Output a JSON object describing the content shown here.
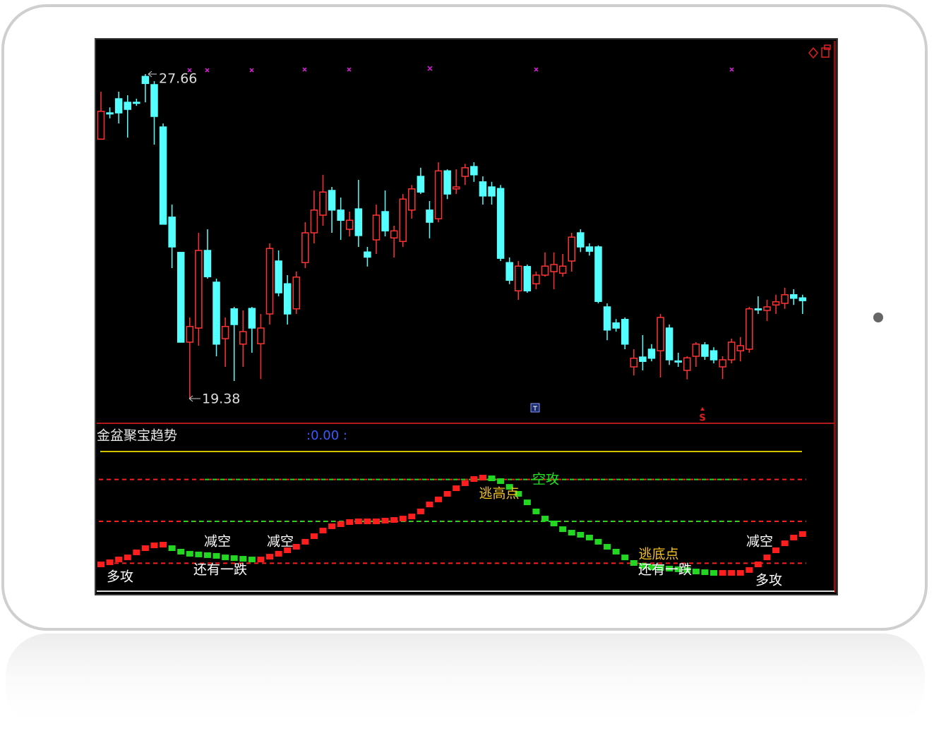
{
  "chart_data": [
    {
      "type": "candlestick",
      "up_color": "#ff3232",
      "down_color": "#54ffff",
      "ylim": [
        18.75,
        28.47
      ],
      "high_mark": 27.66,
      "low_mark": 19.38,
      "signal": "S",
      "open": [
        26.0,
        26.67,
        27.03,
        26.94,
        26.94,
        27.6,
        27.39,
        26.31,
        24.01,
        23.11,
        20.82,
        21.18,
        23.16,
        22.35,
        20.91,
        21.67,
        20.77,
        21.68,
        20.78,
        21.54,
        22.89,
        22.31,
        21.67,
        22.85,
        23.61,
        24.06,
        24.69,
        24.19,
        23.7,
        24.22,
        23.12,
        23.43,
        24.15,
        23.48,
        23.39,
        24.19,
        25.05,
        24.19,
        23.97,
        25.19,
        24.73,
        25.05,
        25.3,
        24.91,
        24.78,
        24.74,
        22.85,
        22.13,
        22.75,
        22.31,
        22.53,
        22.62,
        22.58,
        22.89,
        23.61,
        23.25,
        23.25,
        21.72,
        21.31,
        21.4,
        20.19,
        20.44,
        20.64,
        20.6,
        21.18,
        20.34,
        20.1,
        20.46,
        20.75,
        20.6,
        20.19,
        20.37,
        20.6,
        20.64,
        21.67,
        21.63,
        21.77,
        21.81,
        22.03,
        21.95
      ],
      "high": [
        27.21,
        26.81,
        27.21,
        27.12,
        27.03,
        27.66,
        27.48,
        26.4,
        24.33,
        23.11,
        21.45,
        23.61,
        23.7,
        22.44,
        21.45,
        21.72,
        21.63,
        21.72,
        21.54,
        23.34,
        23.16,
        22.53,
        22.62,
        23.88,
        24.69,
        25.09,
        24.78,
        24.51,
        24.15,
        24.96,
        23.25,
        24.33,
        24.69,
        23.79,
        24.6,
        24.83,
        25.27,
        24.42,
        25.41,
        25.23,
        25.23,
        25.37,
        25.41,
        25.05,
        24.91,
        24.83,
        22.98,
        22.89,
        22.8,
        22.62,
        23.11,
        23.11,
        23.07,
        23.61,
        23.7,
        23.34,
        23.29,
        21.81,
        21.41,
        21.45,
        20.64,
        21.0,
        20.77,
        21.54,
        21.27,
        20.55,
        20.46,
        20.82,
        20.82,
        20.69,
        20.46,
        20.91,
        20.95,
        21.72,
        21.99,
        21.9,
        22.03,
        22.21,
        22.17,
        22.03
      ],
      "low": [
        26.0,
        26.53,
        26.4,
        26.04,
        26.85,
        26.94,
        25.86,
        23.83,
        22.71,
        20.82,
        19.38,
        20.73,
        22.44,
        20.46,
        20.19,
        19.83,
        20.19,
        20.55,
        19.88,
        21.27,
        21.99,
        21.27,
        21.54,
        22.71,
        23.34,
        23.79,
        23.61,
        23.43,
        23.52,
        23.25,
        22.75,
        23.07,
        23.52,
        22.98,
        23.25,
        23.97,
        24.6,
        23.47,
        23.88,
        24.47,
        24.6,
        24.83,
        24.91,
        24.33,
        24.33,
        22.89,
        22.3,
        21.9,
        22.08,
        22.17,
        22.49,
        22.17,
        22.49,
        22.62,
        23.12,
        23.03,
        21.81,
        20.87,
        21.09,
        20.64,
        19.97,
        20.1,
        20.33,
        19.92,
        20.24,
        20.19,
        19.87,
        20.19,
        20.37,
        20.28,
        19.88,
        20.28,
        20.33,
        20.55,
        21.54,
        21.36,
        21.54,
        21.67,
        21.77,
        21.54
      ],
      "close": [
        26.71,
        26.65,
        26.67,
        26.76,
        26.92,
        27.42,
        26.58,
        23.83,
        23.25,
        20.82,
        21.22,
        23.16,
        22.49,
        20.77,
        21.22,
        21.27,
        21.09,
        21.18,
        21.18,
        23.21,
        22.08,
        21.54,
        22.48,
        23.61,
        24.19,
        24.65,
        24.19,
        23.93,
        23.93,
        23.54,
        22.99,
        24.06,
        23.66,
        23.66,
        24.47,
        24.73,
        24.65,
        23.88,
        25.19,
        24.6,
        24.78,
        25.27,
        25.09,
        24.55,
        24.55,
        22.96,
        22.4,
        22.76,
        22.13,
        22.53,
        22.76,
        22.8,
        22.76,
        23.5,
        23.25,
        23.14,
        21.86,
        21.13,
        21.18,
        20.77,
        20.41,
        20.33,
        20.41,
        21.45,
        20.37,
        20.33,
        20.42,
        20.77,
        20.46,
        20.37,
        20.37,
        20.82,
        20.73,
        21.67,
        21.66,
        21.72,
        21.85,
        22.03,
        21.94,
        21.88
      ]
    },
    {
      "type": "step",
      "title": "金盆聚宝趋势",
      "readout": ":0.00 :",
      "up_color": "#ff1e1e",
      "down_color": "#22d622",
      "ylim": [
        0,
        100
      ],
      "levels": [
        20,
        50,
        80
      ],
      "ceiling": 100,
      "ceiling_color": "#d4c400",
      "values": [
        19.2,
        20.7,
        22.7,
        24.2,
        27.8,
        30.8,
        32.8,
        33.3,
        30.8,
        28.3,
        26.8,
        26.3,
        25.8,
        25.3,
        24.2,
        23.7,
        23.2,
        22.7,
        22.7,
        24.7,
        26.8,
        29.3,
        31.8,
        35.4,
        39.4,
        43.4,
        46.5,
        48.0,
        49.5,
        50.0,
        50.0,
        50.0,
        50.5,
        51.0,
        52.0,
        53.5,
        57.1,
        62.1,
        65.7,
        69.7,
        73.7,
        77.3,
        80.3,
        81.3,
        80.8,
        78.8,
        74.7,
        69.7,
        63.6,
        57.1,
        52.0,
        48.5,
        44.4,
        41.9,
        40.4,
        38.4,
        35.4,
        31.8,
        28.3,
        24.2,
        20.2,
        18.2,
        17.2,
        16.7,
        16.2,
        15.7,
        15.2,
        14.1,
        13.6,
        13.1,
        13.1,
        13.1,
        13.1,
        15.2,
        19.2,
        24.2,
        29.3,
        34.3,
        38.4,
        40.9
      ],
      "annotations": [
        {
          "text": "多攻",
          "color": "#ffffff"
        },
        {
          "text": "减空",
          "color": "#ffffff"
        },
        {
          "text": "还有一跌",
          "color": "#ffffff"
        },
        {
          "text": "减空",
          "color": "#ffffff"
        },
        {
          "text": "逃高点",
          "color": "#f0c020"
        },
        {
          "text": "空攻",
          "color": "#22e022"
        },
        {
          "text": "逃底点",
          "color": "#f0c020"
        },
        {
          "text": "还有一跌",
          "color": "#ffffff"
        },
        {
          "text": "减空",
          "color": "#ffffff"
        },
        {
          "text": "多攻",
          "color": "#ffffff"
        }
      ]
    }
  ]
}
